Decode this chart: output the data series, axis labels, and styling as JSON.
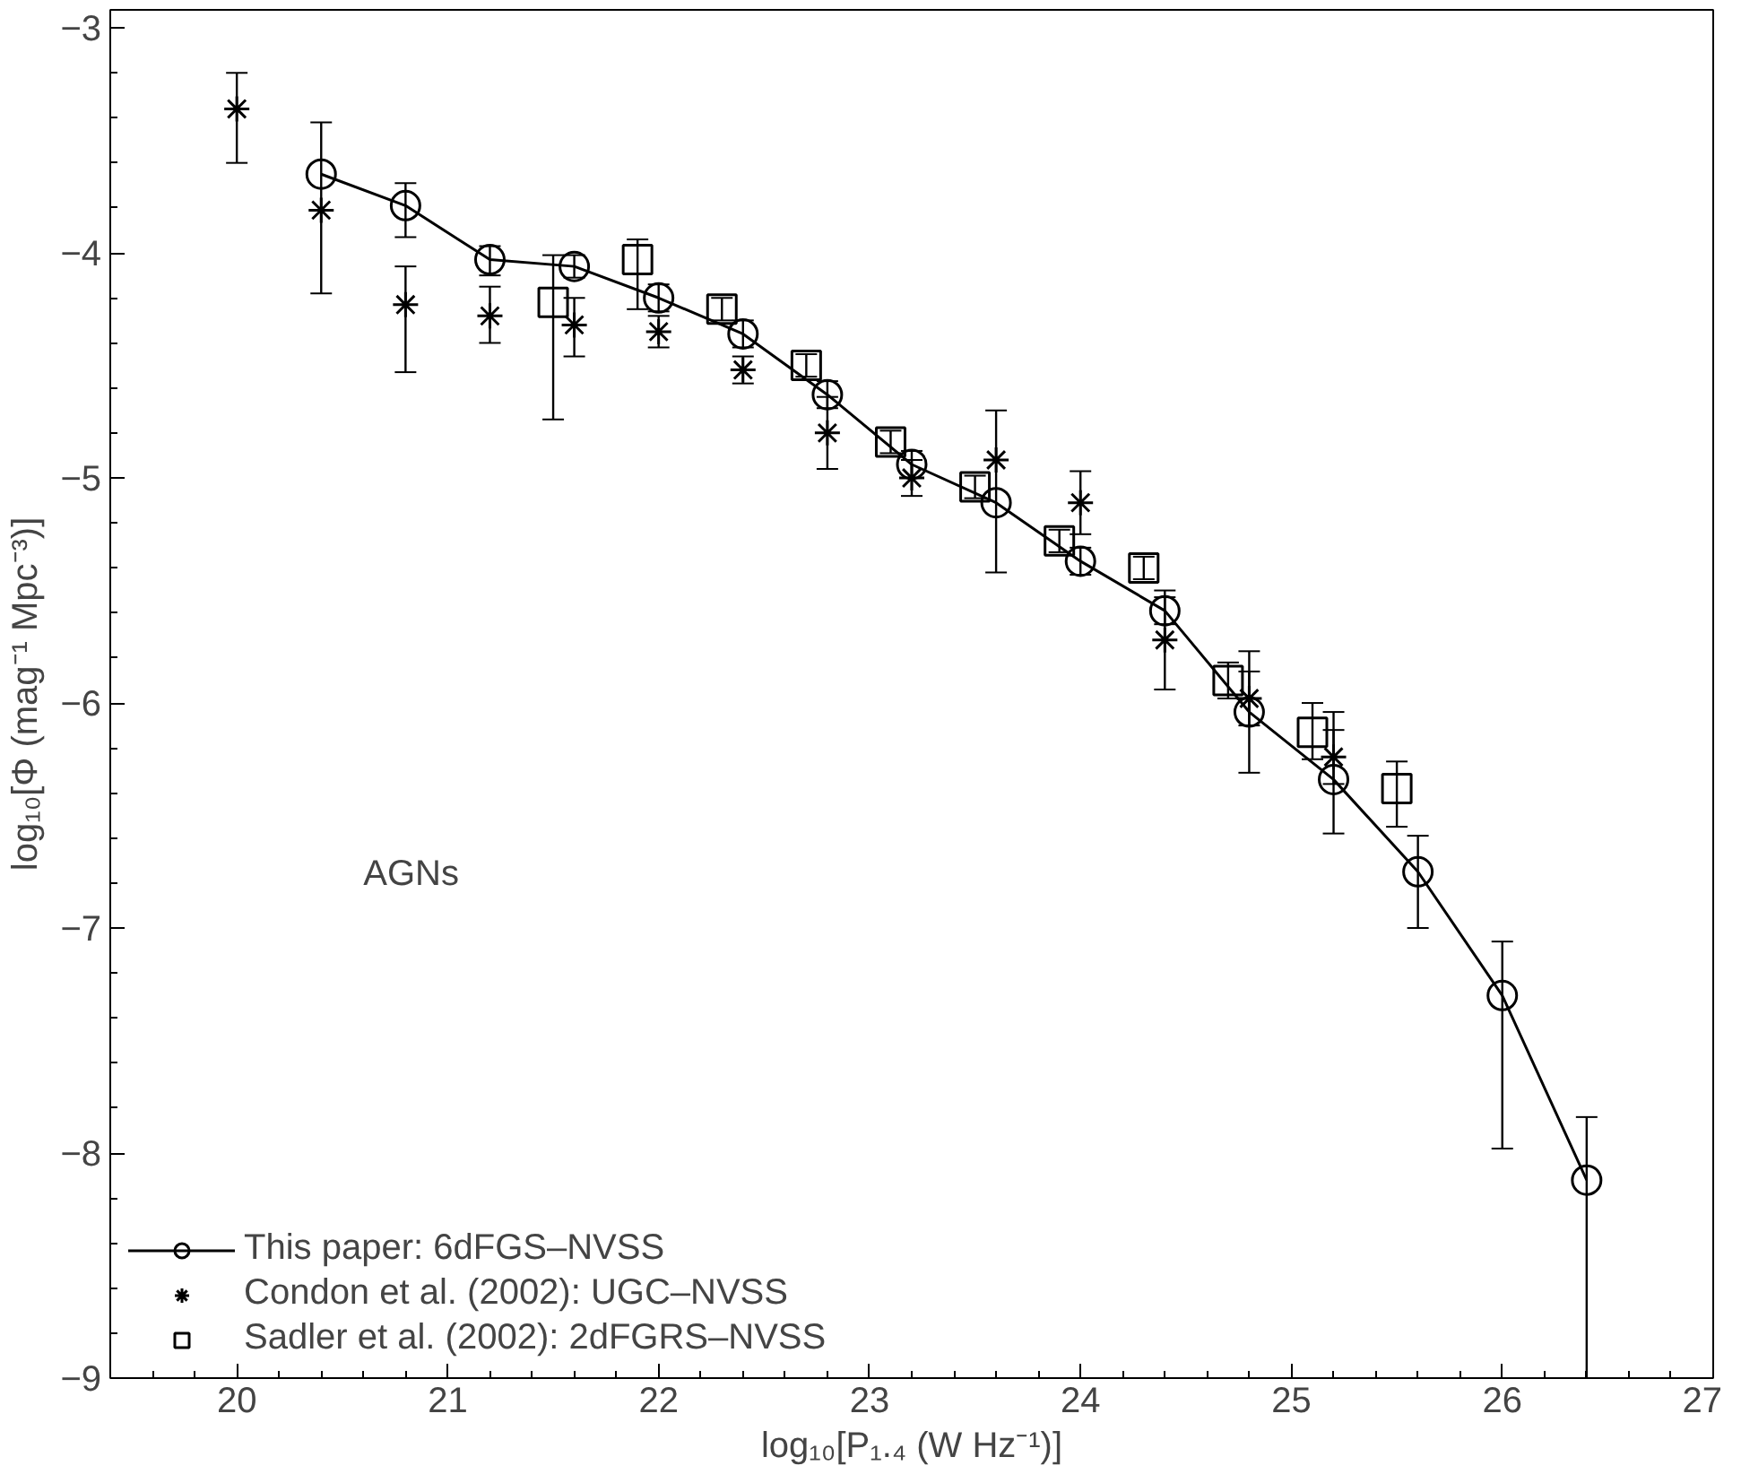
{
  "chart_data": {
    "type": "scatter",
    "xlabel": "log₁₀[P₁.₄ (W Hz⁻¹)]",
    "ylabel": "log₁₀[Φ (mag⁻¹ Mpc⁻³)]",
    "annotations": [
      "AGNs"
    ],
    "xlim": [
      19.4,
      27
    ],
    "ylim": [
      -9,
      -2.92
    ],
    "xticks": [
      20,
      21,
      22,
      23,
      24,
      25,
      26,
      27
    ],
    "yticks": [
      -3,
      -4,
      -5,
      -6,
      -7,
      -8,
      -9
    ],
    "grid": false,
    "legend": "bottom left",
    "series": [
      {
        "name": "This paper: 6dFGS–NVSS",
        "type": "line",
        "marker": "circle",
        "color": "#000000",
        "x": [
          20.4,
          20.8,
          21.2,
          21.6,
          22.0,
          22.4,
          22.8,
          23.2,
          23.6,
          24.0,
          24.4,
          24.8,
          25.2,
          25.6,
          26.0,
          26.4
        ],
        "values": [
          -3.65,
          -3.79,
          -4.03,
          -4.06,
          -4.2,
          -4.36,
          -4.63,
          -4.94,
          -5.11,
          -5.37,
          -5.59,
          -6.04,
          -6.34,
          -6.75,
          -7.3,
          -8.12
        ],
        "errors": [
          [
            -4.18,
            -3.42
          ],
          [
            -3.93,
            -3.69
          ],
          [
            -4.1,
            -3.97
          ],
          [
            -4.11,
            -4.01
          ],
          [
            -4.26,
            -4.14
          ],
          [
            -4.42,
            -4.3
          ],
          [
            -4.69,
            -4.57
          ],
          [
            -5.0,
            -4.88
          ],
          [
            -5.42,
            -4.7
          ],
          [
            -5.43,
            -5.31
          ],
          [
            -5.65,
            -5.53
          ],
          [
            -6.31,
            -5.77
          ],
          [
            -6.58,
            -6.04
          ],
          [
            -7.0,
            -6.59
          ],
          [
            -7.98,
            -7.06
          ],
          [
            -9.0,
            -7.84
          ]
        ]
      },
      {
        "name": "Condon et al. (2002): UGC–NVSS",
        "marker": "cross",
        "color": "#000000",
        "x": [
          20.0,
          20.4,
          20.8,
          21.2,
          21.6,
          22.0,
          22.4,
          22.8,
          23.2,
          23.6,
          24.0,
          24.4,
          24.8,
          25.2
        ],
        "values": [
          -3.36,
          -3.81,
          -4.23,
          -4.28,
          -4.32,
          -4.35,
          -4.52,
          -4.8,
          -5.0,
          -4.92,
          -5.11,
          -5.72,
          -5.98,
          -6.24
        ],
        "errors": [
          [
            -3.6,
            -3.2
          ],
          null,
          [
            -4.53,
            -4.06
          ],
          [
            -4.4,
            -4.15
          ],
          [
            -4.46,
            -4.2
          ],
          [
            -4.42,
            -4.28
          ],
          [
            -4.58,
            -4.46
          ],
          [
            -4.96,
            -4.64
          ],
          [
            -5.08,
            -4.92
          ],
          null,
          [
            -5.25,
            -4.97
          ],
          [
            -5.94,
            -5.5
          ],
          [
            -6.1,
            -5.86
          ],
          [
            -6.36,
            -6.12
          ]
        ]
      },
      {
        "name": "Sadler et al. (2002): 2dFGRS–NVSS",
        "marker": "square",
        "color": "#000000",
        "x": [
          21.5,
          21.9,
          22.3,
          22.7,
          23.1,
          23.5,
          23.9,
          24.3,
          24.7,
          25.1,
          25.5
        ],
        "values": [
          -4.22,
          -4.03,
          -4.25,
          -4.5,
          -4.84,
          -5.04,
          -5.28,
          -5.4,
          -5.9,
          -6.13,
          -6.38
        ],
        "errors": [
          [
            -4.74,
            -4.01
          ],
          [
            -4.25,
            -3.94
          ],
          [
            -4.3,
            -4.2
          ],
          [
            -4.55,
            -4.45
          ],
          [
            -4.89,
            -4.79
          ],
          [
            -5.09,
            -4.99
          ],
          [
            -5.33,
            -5.23
          ],
          [
            -5.45,
            -5.35
          ],
          [
            -5.98,
            -5.82
          ],
          [
            -6.25,
            -6.0
          ],
          [
            -6.55,
            -6.26
          ]
        ]
      }
    ]
  }
}
